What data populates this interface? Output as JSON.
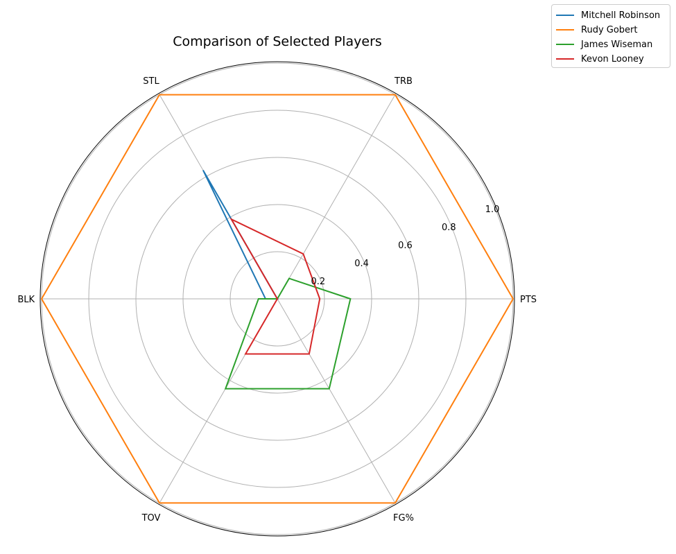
{
  "chart_data": {
    "type": "radar",
    "title": "Comparison of Selected Players",
    "categories": [
      "PTS",
      "TRB",
      "STL",
      "BLK",
      "TOV",
      "FG%"
    ],
    "radial_ticks": [
      "0.2",
      "0.4",
      "0.6",
      "0.8",
      "1.0"
    ],
    "radial_tick_values": [
      0.2,
      0.4,
      0.6,
      0.8,
      1.0
    ],
    "rlim": [
      0,
      1.0
    ],
    "grid": true,
    "legend_position": "top-right",
    "series": [
      {
        "name": "Mitchell Robinson",
        "color": "#1f77b4",
        "values": [
          0.0,
          0.0,
          0.63,
          0.05,
          0.0,
          0.0
        ]
      },
      {
        "name": "Rudy Gobert",
        "color": "#ff7f0e",
        "values": [
          1.0,
          1.0,
          1.0,
          1.0,
          1.0,
          1.0
        ]
      },
      {
        "name": "James Wiseman",
        "color": "#2ca02c",
        "values": [
          0.31,
          0.1,
          0.0,
          0.08,
          0.44,
          0.44
        ]
      },
      {
        "name": "Kevon Looney",
        "color": "#d62728",
        "values": [
          0.18,
          0.22,
          0.39,
          0.0,
          0.27,
          0.27
        ]
      }
    ]
  }
}
